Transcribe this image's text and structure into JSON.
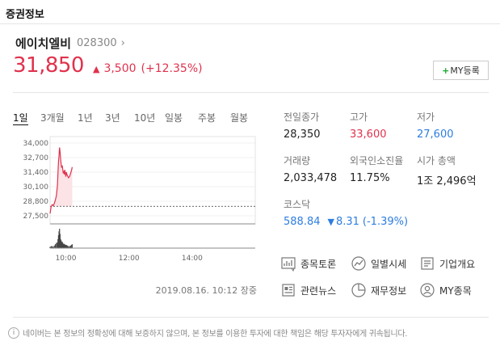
{
  "header": {
    "title": "증권정보"
  },
  "stock": {
    "name": "에이치엘비",
    "code": "028300",
    "chevron": "›",
    "price": "31,850",
    "change": "3,500",
    "change_pct": "(+12.35%)",
    "my_button_plus": "+",
    "my_button_label": "MY등록"
  },
  "periods": [
    "1일",
    "3개월",
    "1년",
    "3년",
    "10년",
    "일봉",
    "주봉",
    "월봉"
  ],
  "active_period": "1일",
  "stats": {
    "prev_close": {
      "label": "전일종가",
      "value": "28,350"
    },
    "high": {
      "label": "고가",
      "value": "33,600"
    },
    "low": {
      "label": "저가",
      "value": "27,600"
    },
    "volume": {
      "label": "거래량",
      "value": "2,033,478"
    },
    "foreign": {
      "label": "외국인소진율",
      "value": "11.75%"
    },
    "market_cap": {
      "label": "시가 총액",
      "value": "1조 2,496억"
    },
    "index": {
      "label": "코스닥",
      "value": "588.84",
      "arrow": "▼",
      "change": "8.31",
      "change_pct": "(-1.39%)"
    }
  },
  "links": [
    {
      "label": "종목토론"
    },
    {
      "label": "일별시세"
    },
    {
      "label": "기업개요"
    },
    {
      "label": "관련뉴스"
    },
    {
      "label": "재무정보"
    },
    {
      "label": "MY종목"
    }
  ],
  "date_line": "2019.08.16. 10:12 장중",
  "disclaimer": "네이버는 본 정보의 정확성에 대해 보증하지 않으며, 본 정보를 이용한 투자에 대한 책임은 해당 투자자에게 귀속됩니다.",
  "colors": {
    "up": "#e0324d",
    "down": "#2d7de0",
    "accent_green": "#1aa72b"
  },
  "chart_data": {
    "type": "line",
    "y_ticks": [
      "34,000",
      "32,700",
      "31,400",
      "30,100",
      "28,800",
      "27,500"
    ],
    "x_ticks": [
      "10:00",
      "12:00",
      "14:00"
    ],
    "ylim": [
      27500,
      34000
    ],
    "xlim": [
      0,
      390
    ],
    "prev_close": 28350,
    "x": [
      0,
      2,
      4,
      6,
      8,
      10,
      12,
      14,
      15,
      16,
      17,
      18,
      19,
      20,
      21,
      22,
      23,
      24,
      25,
      26,
      27,
      28,
      29,
      30,
      31,
      32,
      33,
      35,
      37,
      39,
      41,
      42
    ],
    "values": [
      27700,
      28300,
      28500,
      28400,
      28600,
      28900,
      29300,
      30200,
      31400,
      32300,
      32900,
      33600,
      33200,
      32600,
      32100,
      31800,
      32000,
      31700,
      31300,
      31500,
      31200,
      31600,
      31300,
      31000,
      31400,
      31200,
      31100,
      30900,
      31000,
      31300,
      31600,
      31850
    ],
    "volume": [
      2,
      3,
      3,
      2,
      4,
      6,
      8,
      9,
      14,
      20,
      26,
      30,
      22,
      14,
      12,
      9,
      10,
      8,
      6,
      7,
      5,
      6,
      5,
      4,
      5,
      3,
      4,
      3,
      3,
      4,
      5,
      6
    ]
  }
}
